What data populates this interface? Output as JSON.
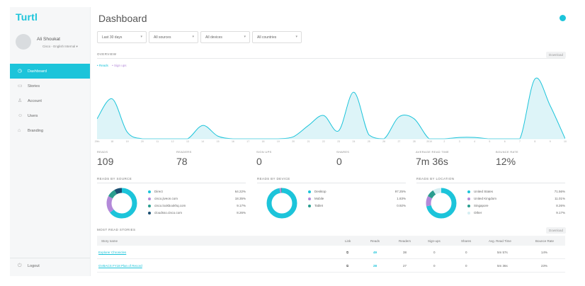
{
  "brand": {
    "logo": "Turtl",
    "accent": "#1cc4da",
    "secondary": "#b389d9"
  },
  "user": {
    "name": "Ali Shoukat",
    "workspace": "Cisco - English Internal"
  },
  "nav": {
    "items": [
      {
        "label": "Dashboard",
        "icon": "dashboard-icon",
        "active": true
      },
      {
        "label": "Stories",
        "icon": "stories-icon",
        "active": false
      },
      {
        "label": "Account",
        "icon": "account-icon",
        "active": false
      },
      {
        "label": "Users",
        "icon": "users-icon",
        "active": false
      },
      {
        "label": "Branding",
        "icon": "branding-icon",
        "active": false
      }
    ],
    "logout": "Logout"
  },
  "page": {
    "title": "Dashboard"
  },
  "filters": {
    "date": "Last 30 days",
    "sources": "All sources",
    "devices": "All devices",
    "countries": "All countries"
  },
  "overview": {
    "label": "OVERVIEW",
    "download": "Download",
    "legend": {
      "reads": "Reads",
      "signups": "Sign ups"
    }
  },
  "chart_data": {
    "type": "area",
    "x": [
      "29th",
      "1st",
      "2nd",
      "3rd",
      "4th",
      "5th",
      "6th",
      "7th",
      "8th",
      "9th",
      "10th",
      "11th",
      "12th",
      "13th",
      "14th",
      "15th",
      "16th",
      "17th",
      "18th",
      "19th",
      "20th",
      "21st",
      "22nd",
      "23rd",
      "24th",
      "25th",
      "26th",
      "27th",
      "28th",
      "29th",
      "30th",
      "31st"
    ],
    "xticks_shown": [
      "29th",
      "18",
      "19",
      "20",
      "11",
      "12",
      "13",
      "14",
      "15",
      "16",
      "17",
      "18",
      "19",
      "20",
      "21",
      "22",
      "23",
      "24",
      "25",
      "26",
      "27",
      "28",
      "2019",
      "2",
      "3",
      "4",
      "5",
      "6",
      "7",
      "8",
      "9",
      "10"
    ],
    "series": [
      {
        "name": "Reads",
        "values": [
          3,
          6,
          1,
          0,
          0,
          0,
          0,
          2,
          0.4,
          0,
          0,
          0,
          0,
          0.3,
          2,
          3.5,
          1.2,
          7,
          0.6,
          0,
          3.3,
          3,
          0,
          0,
          0.2,
          0.2,
          0,
          0,
          0,
          9,
          5,
          0
        ]
      },
      {
        "name": "Sign ups",
        "values": [
          0,
          0,
          0,
          0,
          0,
          0,
          0,
          0,
          0,
          0,
          0,
          0,
          0,
          0,
          0,
          0,
          0,
          0,
          0,
          0,
          0,
          0,
          0,
          0,
          0,
          0,
          0,
          0,
          0,
          0,
          0,
          0
        ]
      }
    ],
    "ylim": [
      0,
      10
    ],
    "grid": false
  },
  "stats": [
    {
      "label": "READS",
      "value": "109"
    },
    {
      "label": "READERS",
      "value": "78"
    },
    {
      "label": "SIGN UPS",
      "value": "0"
    },
    {
      "label": "SHARES",
      "value": "0"
    },
    {
      "label": "AVERAGE READ TIME",
      "value": "7m 36s"
    },
    {
      "label": "BOUNCE RATE",
      "value": "12%"
    }
  ],
  "panels": [
    {
      "title": "READS BY SOURCE",
      "rows": [
        {
          "label": "Direct",
          "value": "64.22%",
          "pct": 64.22,
          "color": "#1cc4da"
        },
        {
          "label": "cisco.jiveon.com",
          "value": "18.35%",
          "pct": 18.35,
          "color": "#b389d9"
        },
        {
          "label": "cisco.lookbookhq.com",
          "value": "9.17%",
          "pct": 9.17,
          "color": "#2a9d8f"
        },
        {
          "label": "cloudsso.cisco.com",
          "value": "8.26%",
          "pct": 8.26,
          "color": "#1b4f72"
        }
      ]
    },
    {
      "title": "READS BY DEVICE",
      "rows": [
        {
          "label": "Desktop",
          "value": "97.25%",
          "pct": 97.25,
          "color": "#1cc4da"
        },
        {
          "label": "Mobile",
          "value": "1.83%",
          "pct": 1.83,
          "color": "#b389d9"
        },
        {
          "label": "Tablet",
          "value": "0.92%",
          "pct": 0.92,
          "color": "#2a9d8f"
        }
      ]
    },
    {
      "title": "READS BY LOCATION",
      "rows": [
        {
          "label": "United States",
          "value": "71.56%",
          "pct": 71.56,
          "color": "#1cc4da"
        },
        {
          "label": "United Kingdom",
          "value": "11.01%",
          "pct": 11.01,
          "color": "#b389d9"
        },
        {
          "label": "Singapore",
          "value": "8.26%",
          "pct": 8.26,
          "color": "#2a9d8f"
        },
        {
          "label": "Other",
          "value": "9.17%",
          "pct": 9.17,
          "color": "#d5eef2"
        }
      ]
    }
  ],
  "most_read": {
    "label": "MOST READ STORIES",
    "download": "Download",
    "columns": [
      "Story name",
      "Link",
      "Reads",
      "Readers",
      "Sign-ups",
      "Shares",
      "Avg. Read Time",
      "Bounce Rate"
    ],
    "rows": [
      {
        "name": "Explorer Chronicles",
        "reads": "49",
        "readers": "38",
        "signups": "0",
        "shares": "0",
        "avg": "5m 57s",
        "bounce": "14%"
      },
      {
        "name": "GVBACS FY18 Plan of Record",
        "reads": "28",
        "readers": "27",
        "signups": "0",
        "shares": "0",
        "avg": "5m 36s",
        "bounce": "23%"
      }
    ]
  }
}
